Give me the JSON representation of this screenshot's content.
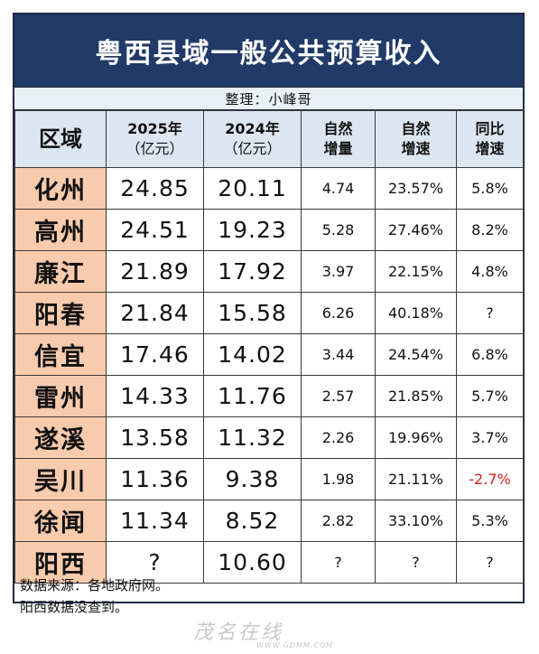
{
  "title": "粤西县域一般公共预算收入",
  "subtitle": "整理：小峰哥",
  "headers": {
    "region": "区域",
    "y2025_a": "2025年",
    "y2025_b": "（亿元）",
    "y2024_a": "2024年",
    "y2024_b": "（亿元）",
    "inc_a": "自然",
    "inc_b": "增量",
    "rate_a": "自然",
    "rate_b": "增速",
    "yoy_a": "同比",
    "yoy_b": "增速"
  },
  "rows": [
    {
      "region": "化州",
      "y2025": "24.85",
      "y2024": "20.11",
      "inc": "4.74",
      "rate": "23.57%",
      "yoy": "5.8%"
    },
    {
      "region": "高州",
      "y2025": "24.51",
      "y2024": "19.23",
      "inc": "5.28",
      "rate": "27.46%",
      "yoy": "8.2%"
    },
    {
      "region": "廉江",
      "y2025": "21.89",
      "y2024": "17.92",
      "inc": "3.97",
      "rate": "22.15%",
      "yoy": "4.8%"
    },
    {
      "region": "阳春",
      "y2025": "21.84",
      "y2024": "15.58",
      "inc": "6.26",
      "rate": "40.18%",
      "yoy": "?"
    },
    {
      "region": "信宜",
      "y2025": "17.46",
      "y2024": "14.02",
      "inc": "3.44",
      "rate": "24.54%",
      "yoy": "6.8%"
    },
    {
      "region": "雷州",
      "y2025": "14.33",
      "y2024": "11.76",
      "inc": "2.57",
      "rate": "21.85%",
      "yoy": "5.7%"
    },
    {
      "region": "遂溪",
      "y2025": "13.58",
      "y2024": "11.32",
      "inc": "2.26",
      "rate": "19.96%",
      "yoy": "3.7%"
    },
    {
      "region": "吴川",
      "y2025": "11.36",
      "y2024": "9.38",
      "inc": "1.98",
      "rate": "21.11%",
      "yoy": "-2.7%"
    },
    {
      "region": "徐闻",
      "y2025": "11.34",
      "y2024": "8.52",
      "inc": "2.82",
      "rate": "33.10%",
      "yoy": "5.3%"
    },
    {
      "region": "阳西",
      "y2025": "?",
      "y2024": "10.60",
      "inc": "?",
      "rate": "?",
      "yoy": "?"
    }
  ],
  "footer": {
    "line1": "数据来源：各地政府网。",
    "line2": "阳西数据没查到。"
  },
  "watermark": {
    "text": "茂名在线",
    "url": "WWW.GDMM.COM"
  },
  "colors": {
    "title_bg": "#213a67",
    "region_bg": "#f8cbad",
    "header_bg": "#dce6f1",
    "negative": "#d21f1f"
  }
}
